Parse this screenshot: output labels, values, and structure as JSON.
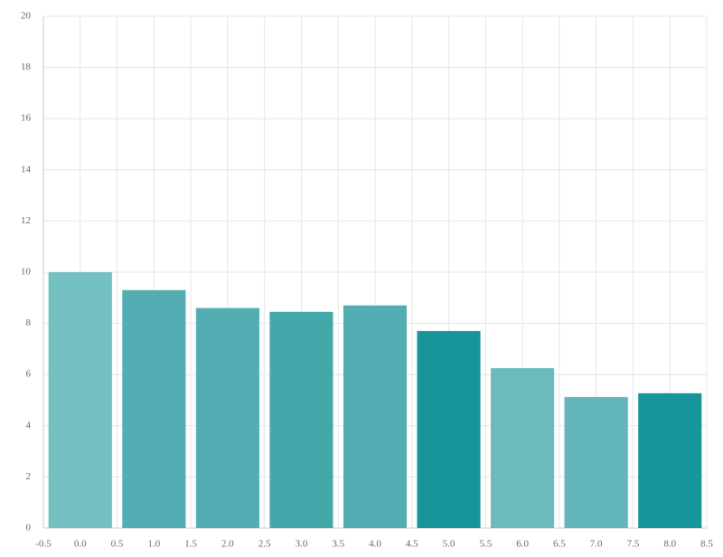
{
  "chart_data": {
    "type": "bar",
    "x": [
      0,
      1,
      2,
      3,
      4,
      5,
      6,
      7,
      8
    ],
    "values": [
      10.0,
      9.3,
      8.6,
      8.45,
      8.7,
      7.7,
      6.25,
      5.12,
      5.27
    ],
    "colors": [
      "#74bfc2",
      "#52aeb2",
      "#52aeb2",
      "#44a8ab",
      "#52aeb2",
      "#17959a",
      "#6bbabd",
      "#62b5b8",
      "#17959a"
    ],
    "xlim": [
      -0.5,
      8.5
    ],
    "xticks": [
      -0.5,
      {
        "value": 0,
        "label": "0.0"
      },
      0.5,
      {
        "value": 1,
        "label": "1.0"
      },
      1.5,
      {
        "value": 2,
        "label": "2.0"
      },
      2.5,
      {
        "value": 3,
        "label": "3.0"
      },
      3.5,
      {
        "value": 4,
        "label": "4.0"
      },
      4.5,
      {
        "value": 5,
        "label": "5.0"
      },
      5.5,
      {
        "value": 6,
        "label": "6.0"
      },
      6.5,
      {
        "value": 7,
        "label": "7.0"
      },
      7.5,
      {
        "value": 8,
        "label": "8.0"
      },
      8.5
    ],
    "ylim": [
      0,
      20
    ],
    "yticks": [
      0,
      2,
      4,
      6,
      8,
      10,
      12,
      14,
      16,
      18,
      20
    ],
    "grid": true
  }
}
